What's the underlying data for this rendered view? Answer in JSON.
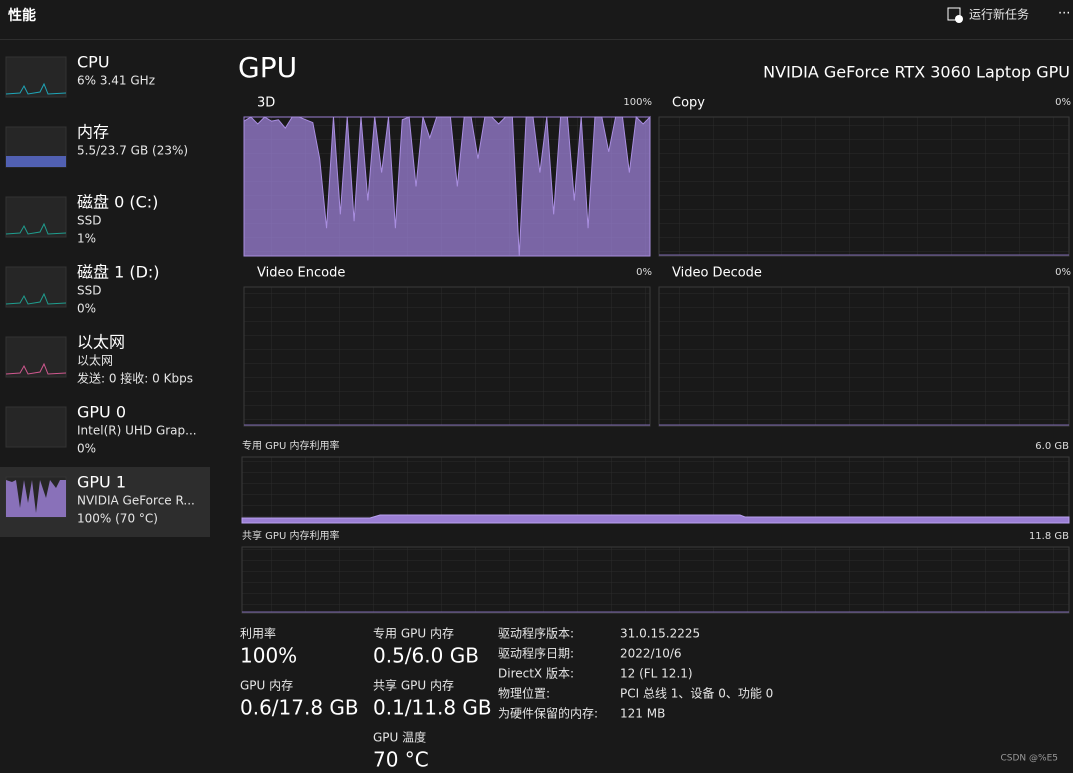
{
  "header": {
    "title": "性能",
    "run_task": "运行新任务",
    "more": "···"
  },
  "sidebar": {
    "items": [
      {
        "name": "CPU",
        "lines": [
          "6% 3.41 GHz"
        ]
      },
      {
        "name": "内存",
        "lines": [
          "5.5/23.7 GB (23%)"
        ]
      },
      {
        "name": "磁盘 0 (C:)",
        "lines": [
          "SSD",
          "1%"
        ]
      },
      {
        "name": "磁盘 1 (D:)",
        "lines": [
          "SSD",
          "0%"
        ]
      },
      {
        "name": "以太网",
        "lines": [
          "以太网",
          "发送: 0 接收: 0 Kbps"
        ]
      },
      {
        "name": "GPU 0",
        "lines": [
          "Intel(R) UHD Grap...",
          "0%"
        ]
      },
      {
        "name": "GPU 1",
        "lines": [
          "NVIDIA GeForce R...",
          "100% (70 °C)"
        ]
      }
    ]
  },
  "main": {
    "title": "GPU",
    "model": "NVIDIA GeForce RTX 3060 Laptop GPU",
    "graphs": [
      {
        "label": "3D",
        "max": "100%",
        "ylim": [
          0,
          100
        ],
        "history": [
          97,
          100,
          95,
          100,
          97,
          98,
          92,
          100,
          100,
          98,
          96,
          70,
          20,
          100,
          30,
          100,
          25,
          100,
          40,
          100,
          60,
          100,
          20,
          98,
          100,
          50,
          100,
          85,
          100,
          100,
          100,
          50,
          100,
          100,
          70,
          100,
          100,
          95,
          100,
          100,
          0,
          100,
          100,
          60,
          100,
          30,
          100,
          100,
          40,
          100,
          20,
          100,
          100,
          75,
          100,
          100,
          60,
          100,
          95,
          100
        ]
      },
      {
        "label": "Copy",
        "max": "0%"
      },
      {
        "label": "Video Encode",
        "max": "0%"
      },
      {
        "label": "Video Decode",
        "max": "0%"
      }
    ],
    "memory_graphs": [
      {
        "label": "专用 GPU 内存利用率",
        "max": "6.0 GB"
      },
      {
        "label": "共享 GPU 内存利用率",
        "max": "11.8 GB"
      }
    ],
    "stats": [
      {
        "label": "利用率",
        "value": "100%"
      },
      {
        "label": "GPU 内存",
        "value": "0.6/17.8 GB"
      },
      {
        "label": "专用 GPU 内存",
        "value": "0.5/6.0 GB"
      },
      {
        "label": "共享 GPU 内存",
        "value": "0.1/11.8 GB"
      },
      {
        "label": "GPU 温度",
        "value": "70 °C"
      }
    ],
    "details": [
      {
        "label": "驱动程序版本:",
        "value": "31.0.15.2225"
      },
      {
        "label": "驱动程序日期:",
        "value": "2022/10/6"
      },
      {
        "label": "DirectX 版本:",
        "value": "12 (FL 12.1)"
      },
      {
        "label": "物理位置:",
        "value": "PCI 总线 1、设备 0、功能 0"
      },
      {
        "label": "为硬件保留的内存:",
        "value": "121 MB"
      }
    ]
  },
  "watermark": "CSDN @%E5"
}
